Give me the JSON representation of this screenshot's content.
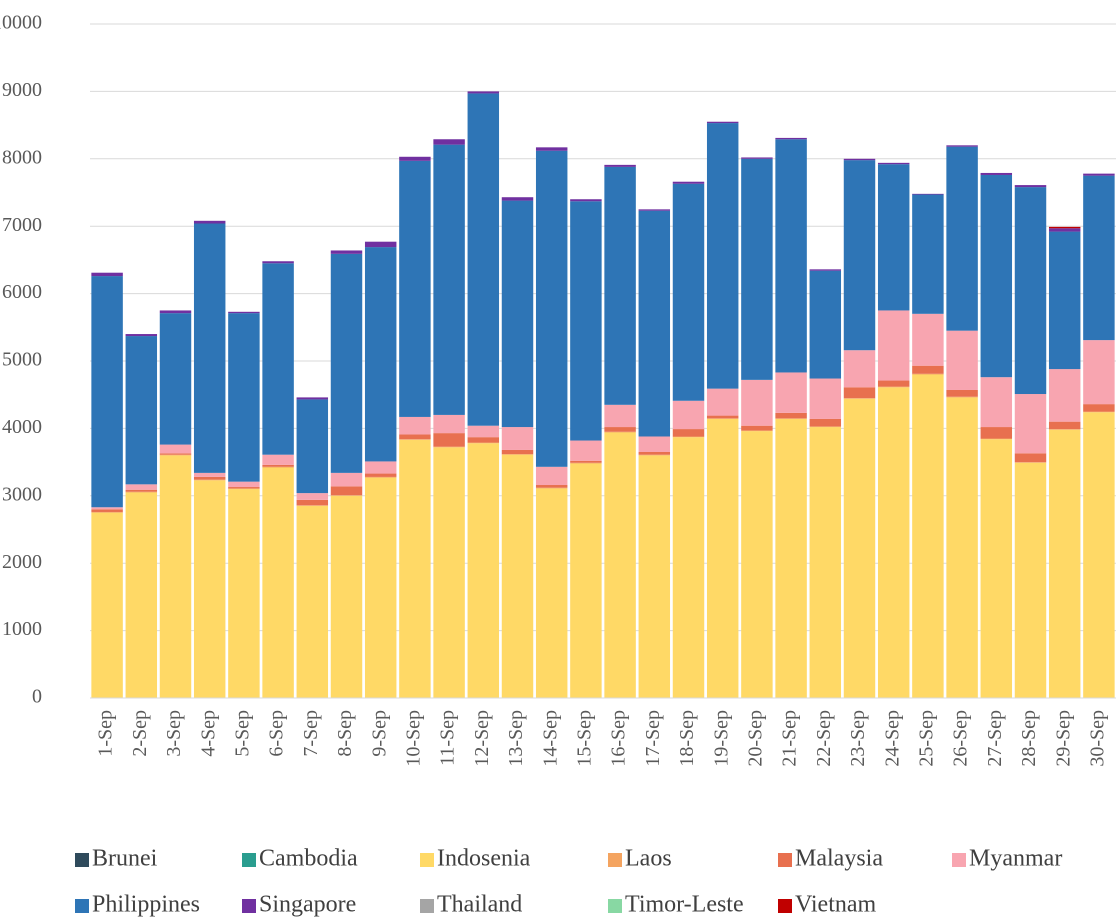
{
  "chart_data": {
    "type": "stacked-bar",
    "categories": [
      "1-Sep",
      "2-Sep",
      "3-Sep",
      "4-Sep",
      "5-Sep",
      "6-Sep",
      "7-Sep",
      "8-Sep",
      "9-Sep",
      "10-Sep",
      "11-Sep",
      "12-Sep",
      "13-Sep",
      "14-Sep",
      "15-Sep",
      "16-Sep",
      "17-Sep",
      "18-Sep",
      "19-Sep",
      "20-Sep",
      "21-Sep",
      "22-Sep",
      "23-Sep",
      "24-Sep",
      "25-Sep",
      "26-Sep",
      "27-Sep",
      "28-Sep",
      "29-Sep",
      "30-Sep"
    ],
    "series": [
      {
        "name": "Brunei",
        "color": "#2f4b5c",
        "values": [
          0,
          0,
          0,
          0,
          0,
          0,
          0,
          0,
          0,
          0,
          0,
          0,
          0,
          0,
          0,
          0,
          0,
          0,
          0,
          0,
          0,
          0,
          0,
          0,
          0,
          0,
          0,
          0,
          0,
          0
        ]
      },
      {
        "name": "Cambodia",
        "color": "#2a9d8f",
        "values": [
          0,
          0,
          0,
          0,
          0,
          0,
          0,
          0,
          0,
          0,
          0,
          0,
          0,
          0,
          0,
          0,
          0,
          0,
          0,
          0,
          0,
          0,
          0,
          0,
          0,
          0,
          0,
          0,
          0,
          0
        ]
      },
      {
        "name": "Indosenia",
        "color": "#ffd966",
        "values": [
          2750,
          3050,
          3600,
          3230,
          3100,
          3420,
          2850,
          3000,
          3270,
          3830,
          3720,
          3780,
          3610,
          3110,
          3480,
          3940,
          3600,
          3870,
          4140,
          3960,
          4140,
          4020,
          4440,
          4610,
          4800,
          4460,
          3840,
          3490,
          3980,
          4240
        ]
      },
      {
        "name": "Laos",
        "color": "#f4a460",
        "values": [
          10,
          10,
          10,
          10,
          10,
          10,
          10,
          10,
          10,
          10,
          10,
          10,
          10,
          10,
          10,
          10,
          10,
          10,
          10,
          10,
          10,
          10,
          10,
          10,
          10,
          10,
          10,
          10,
          10,
          10
        ]
      },
      {
        "name": "Malaysia",
        "color": "#e8704f",
        "values": [
          40,
          30,
          20,
          40,
          20,
          30,
          80,
          130,
          50,
          70,
          200,
          80,
          60,
          40,
          30,
          70,
          40,
          110,
          40,
          70,
          80,
          110,
          160,
          90,
          120,
          100,
          170,
          130,
          110,
          110
        ]
      },
      {
        "name": "Myanmar",
        "color": "#f8a5b0",
        "values": [
          30,
          80,
          130,
          60,
          80,
          150,
          100,
          200,
          180,
          260,
          270,
          170,
          340,
          270,
          300,
          330,
          230,
          420,
          400,
          680,
          600,
          600,
          550,
          1040,
          770,
          880,
          740,
          880,
          780,
          950
        ]
      },
      {
        "name": "Philippines",
        "color": "#2e75b6",
        "values": [
          3430,
          2200,
          1950,
          3700,
          2500,
          2840,
          1390,
          3250,
          3180,
          3800,
          4010,
          4930,
          3360,
          4690,
          3550,
          3530,
          3350,
          3220,
          3940,
          3280,
          3460,
          1600,
          2820,
          2170,
          1770,
          2730,
          3000,
          3070,
          2040,
          2440
        ]
      },
      {
        "name": "Singapore",
        "color": "#7030a0",
        "values": [
          50,
          30,
          40,
          40,
          20,
          30,
          30,
          50,
          80,
          60,
          80,
          30,
          50,
          50,
          30,
          30,
          20,
          30,
          20,
          20,
          20,
          20,
          20,
          20,
          10,
          20,
          30,
          30,
          50,
          30
        ]
      },
      {
        "name": "Thailand",
        "color": "#a5a5a5",
        "values": [
          0,
          0,
          0,
          0,
          0,
          0,
          0,
          0,
          0,
          0,
          0,
          0,
          0,
          0,
          0,
          0,
          0,
          0,
          0,
          0,
          0,
          0,
          0,
          0,
          0,
          0,
          0,
          0,
          0,
          0
        ]
      },
      {
        "name": "Timor-Leste",
        "color": "#88d8a3",
        "values": [
          0,
          0,
          0,
          0,
          0,
          0,
          0,
          0,
          0,
          0,
          0,
          0,
          0,
          0,
          0,
          0,
          0,
          0,
          0,
          0,
          0,
          0,
          0,
          0,
          0,
          0,
          0,
          0,
          0,
          0
        ]
      },
      {
        "name": "Vietnam",
        "color": "#c00000",
        "values": [
          0,
          0,
          0,
          0,
          0,
          0,
          0,
          0,
          0,
          0,
          0,
          0,
          0,
          0,
          0,
          0,
          0,
          0,
          0,
          0,
          0,
          0,
          0,
          0,
          0,
          0,
          0,
          0,
          20,
          0
        ]
      }
    ],
    "ylim": [
      0,
      10000
    ],
    "yticks": [
      0,
      1000,
      2000,
      3000,
      4000,
      5000,
      6000,
      7000,
      8000,
      9000,
      10000
    ],
    "grid": true,
    "legend": "bottom"
  }
}
